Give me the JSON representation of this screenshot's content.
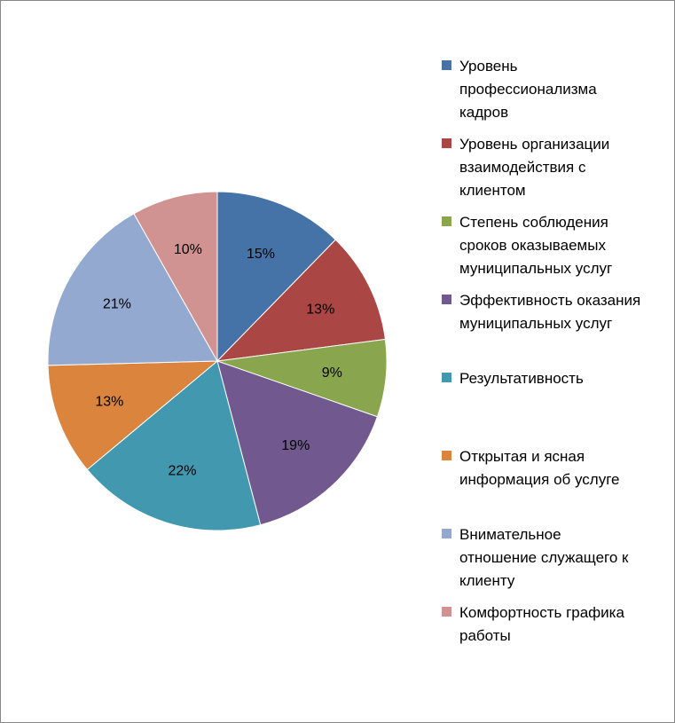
{
  "chart_data": {
    "type": "pie",
    "start_angle_deg": 90,
    "direction": "clockwise",
    "slices": [
      {
        "label": "Уровень\nпрофессионализма\nкадров",
        "value": 15,
        "value_label": "15%",
        "color": "#4572A7"
      },
      {
        "label": "Уровень организации\nвзаимодействия с\nклиентом",
        "value": 13,
        "value_label": "13%",
        "color": "#AA4643"
      },
      {
        "label": "Степень соблюдения\nсроков оказываемых\nмуниципальных услуг",
        "value": 9,
        "value_label": "9%",
        "color": "#89A54E"
      },
      {
        "label": "Эффективность оказания\nмуниципальных услуг",
        "value": 19,
        "value_label": "19%",
        "color": "#71588F"
      },
      {
        "label": "Результативность",
        "value": 22,
        "value_label": "22%",
        "color": "#4198AF"
      },
      {
        "label": "Открытая и ясная\nинформация об услуге",
        "value": 13,
        "value_label": "13%",
        "color": "#DB843D"
      },
      {
        "label": "Внимательное\nотношение служащего к\nклиенту",
        "value": 21,
        "value_label": "21%",
        "color": "#93A9CF"
      },
      {
        "label": " Комфортность графика\nработы",
        "value": 10,
        "value_label": "10%",
        "color": "#D19392"
      }
    ],
    "legend_position": "right"
  }
}
